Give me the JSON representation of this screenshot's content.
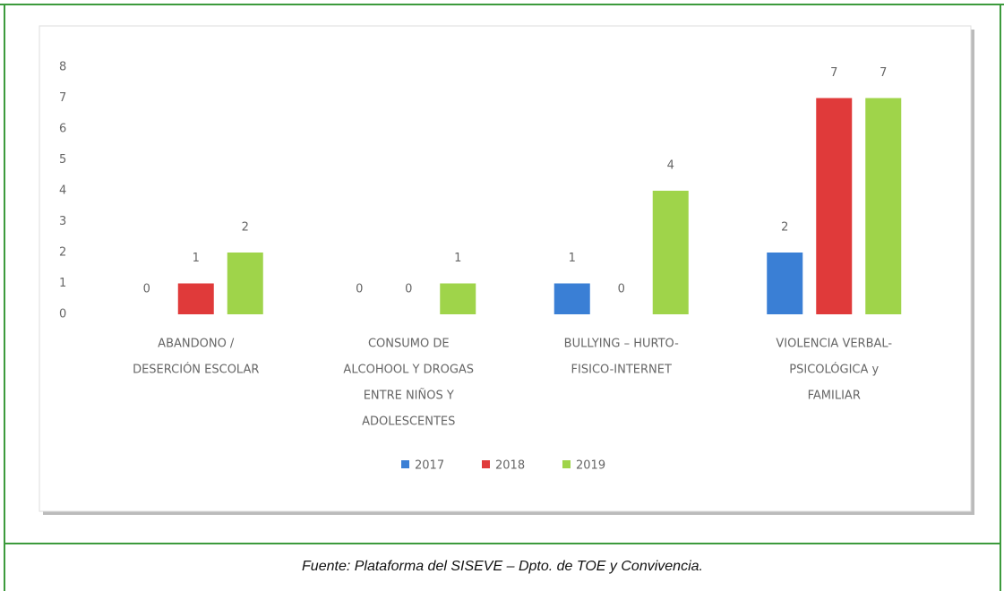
{
  "chart_data": {
    "type": "bar",
    "categories": [
      [
        "ABANDONO /",
        "DESERCIÓN ESCOLAR"
      ],
      [
        "CONSUMO DE",
        "ALCOHOOL Y DROGAS",
        "ENTRE NIÑOS Y",
        "ADOLESCENTES"
      ],
      [
        "BULLYING – HURTO-",
        "FISICO-INTERNET"
      ],
      [
        "VIOLENCIA VERBAL-",
        "PSICOLÓGICA y",
        "FAMILIAR"
      ]
    ],
    "series": [
      {
        "name": "2017",
        "color": "#3a7fd5",
        "values": [
          0,
          0,
          1,
          2
        ]
      },
      {
        "name": "2018",
        "color": "#e03a3a",
        "values": [
          1,
          0,
          0,
          7
        ]
      },
      {
        "name": "2019",
        "color": "#9fd44a",
        "values": [
          2,
          1,
          4,
          7
        ]
      }
    ],
    "ylim": [
      0,
      8
    ],
    "yticks": [
      0,
      1,
      2,
      3,
      4,
      5,
      6,
      7,
      8
    ],
    "grid": false,
    "legend": "bottom"
  },
  "caption": "Fuente: Plataforma del SISEVE – Dpto. de TOE y Convivencia."
}
